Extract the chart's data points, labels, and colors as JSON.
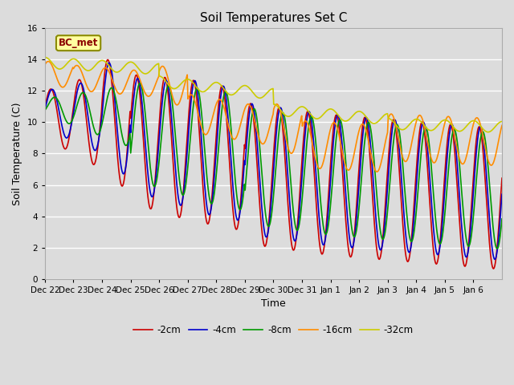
{
  "title": "Soil Temperatures Set C",
  "xlabel": "Time",
  "ylabel": "Soil Temperature (C)",
  "ylim": [
    0,
    16
  ],
  "yticks": [
    0,
    2,
    4,
    6,
    8,
    10,
    12,
    14,
    16
  ],
  "annotation_text": "BC_met",
  "annotation_color": "#8B0000",
  "annotation_bg": "#FFFFA0",
  "annotation_border": "#8B8B00",
  "bg_color": "#DCDCDC",
  "series_colors": [
    "#CC0000",
    "#0000CC",
    "#009900",
    "#FF8C00",
    "#CCCC00"
  ],
  "series_labels": [
    "-2cm",
    "-4cm",
    "-8cm",
    "-16cm",
    "-32cm"
  ],
  "series_linewidths": [
    1.2,
    1.2,
    1.2,
    1.2,
    1.2
  ],
  "xtick_labels": [
    "Dec 22",
    "Dec 23",
    "Dec 24",
    "Dec 25",
    "Dec 26",
    "Dec 27",
    "Dec 28",
    "Dec 29",
    "Dec 30",
    "Dec 31",
    "Jan 1",
    "Jan 2",
    "Jan 3",
    "Jan 4",
    "Jan 5",
    "Jan 6"
  ],
  "n_days": 16,
  "pts_per_day": 48
}
